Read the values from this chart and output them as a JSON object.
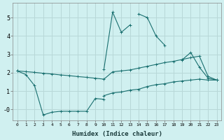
{
  "x": [
    0,
    1,
    2,
    3,
    4,
    5,
    6,
    7,
    8,
    9,
    10,
    11,
    12,
    13,
    14,
    15,
    16,
    17,
    18,
    19,
    20,
    21,
    22,
    23
  ],
  "line1": [
    2.1,
    1.9,
    1.3,
    -0.3,
    -0.15,
    -0.1,
    -0.1,
    -0.1,
    -0.1,
    0.6,
    0.55,
    null,
    null,
    null,
    null,
    null,
    null,
    null,
    null,
    null,
    null,
    null,
    null,
    null
  ],
  "line2": [
    2.1,
    null,
    null,
    null,
    null,
    null,
    null,
    null,
    null,
    null,
    2.2,
    5.3,
    4.2,
    4.6,
    null,
    null,
    null,
    null,
    null,
    null,
    null,
    null,
    null,
    null
  ],
  "line3": [
    null,
    null,
    null,
    null,
    null,
    null,
    null,
    null,
    null,
    null,
    null,
    null,
    null,
    null,
    5.2,
    5.0,
    4.0,
    3.5,
    null,
    2.7,
    3.1,
    2.3,
    1.7,
    1.6
  ],
  "line4": [
    2.1,
    2.06,
    2.02,
    1.97,
    1.93,
    1.88,
    1.84,
    1.79,
    1.75,
    1.7,
    1.65,
    2.05,
    2.1,
    2.15,
    2.25,
    2.35,
    2.45,
    2.55,
    2.62,
    2.72,
    2.82,
    2.9,
    1.8,
    1.6
  ],
  "line5": [
    null,
    null,
    null,
    null,
    null,
    null,
    null,
    null,
    null,
    null,
    0.75,
    0.9,
    0.95,
    1.05,
    1.1,
    1.25,
    1.35,
    1.4,
    1.5,
    1.55,
    1.6,
    1.65,
    1.6,
    1.6
  ],
  "color": "#1a7070",
  "bg_color": "#d0f0f0",
  "grid_color": "#b8d8d8",
  "xlabel": "Humidex (Indice chaleur)",
  "ylim": [
    -0.6,
    5.8
  ],
  "xlim": [
    -0.5,
    23.5
  ]
}
